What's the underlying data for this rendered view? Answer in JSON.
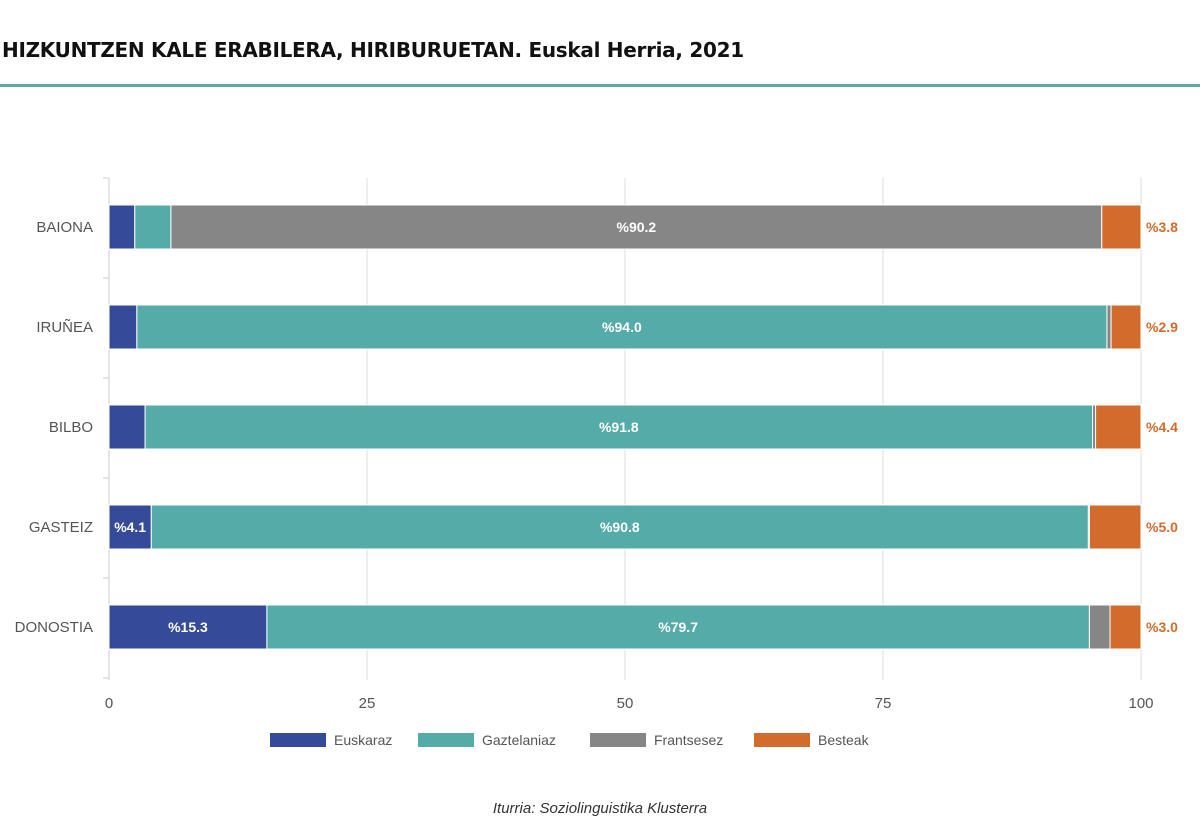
{
  "title": "HIZKUNTZEN KALE ERABILERA, HIRIBURUETAN. Euskal Herria, 2021",
  "source": "Iturria: Soziolinguistika Klusterra",
  "colors": {
    "rule": "#5aa9a8",
    "grid": "#dddddd",
    "axis_text": "#555555",
    "category_text": "#555555",
    "inside_label": "#ffffff",
    "besteak_label": "#d26b2b"
  },
  "chart_data": {
    "type": "bar",
    "orientation": "horizontal",
    "stacked": true,
    "categories": [
      "BAIONA",
      "IRUÑEA",
      "BILBO",
      "GASTEIZ",
      "DONOSTIA"
    ],
    "series": [
      {
        "name": "Euskaraz",
        "color": "#354a99",
        "values": [
          2.5,
          2.7,
          3.5,
          4.1,
          15.3
        ],
        "labels": [
          "",
          "",
          "",
          "%4.1",
          "%15.3"
        ]
      },
      {
        "name": "Gaztelaniaz",
        "color": "#55aba8",
        "values": [
          3.5,
          94.0,
          91.8,
          90.8,
          79.7
        ],
        "labels": [
          "",
          "%94.0",
          "%91.8",
          "%90.8",
          "%79.7"
        ]
      },
      {
        "name": "Frantsesez",
        "color": "#868686",
        "values": [
          90.2,
          0.4,
          0.3,
          0.1,
          2.0
        ],
        "labels": [
          "%90.2",
          "",
          "",
          "",
          ""
        ]
      },
      {
        "name": "Besteak",
        "color": "#d26b2b",
        "values": [
          3.8,
          2.9,
          4.4,
          5.0,
          3.0
        ],
        "labels": [
          "%3.8",
          "%2.9",
          "%4.4",
          "%5.0",
          "%3.0"
        ]
      }
    ],
    "xlim": [
      0,
      100
    ],
    "xticks": [
      0,
      25,
      50,
      75,
      100
    ],
    "grid": true,
    "legend": "bottom"
  }
}
